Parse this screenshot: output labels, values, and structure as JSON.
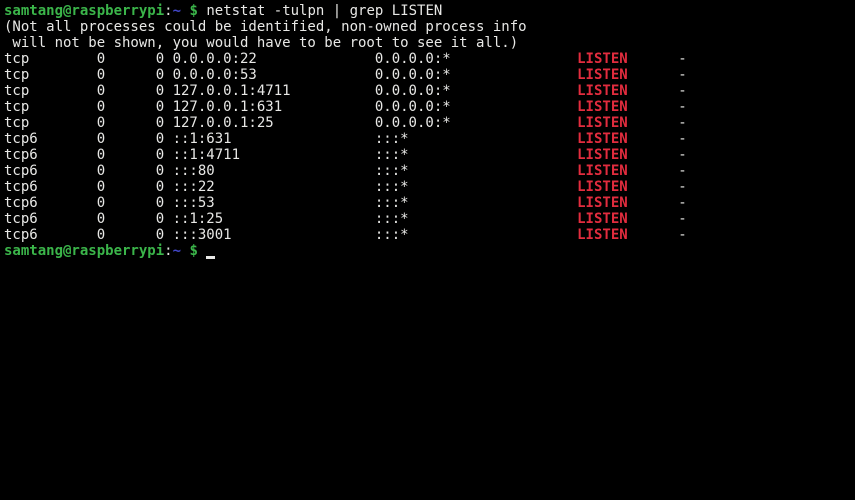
{
  "terminal": {
    "colors": {
      "background": "#000000",
      "foreground": "#e8e8e6",
      "prompt_green": "#3bb54a",
      "path_blue": "#4146c8",
      "match_red": "#e22c3e"
    },
    "prompt_line": {
      "user_host": "samtang@raspberrypi",
      "separator": ":",
      "path": "~",
      "symbol": "$",
      "command": "netstat -tulpn | grep LISTEN"
    },
    "warning_lines": [
      "(Not all processes could be identified, non-owned process info",
      " will not be shown, you would have to be root to see it all.)"
    ],
    "rows": [
      {
        "proto": "tcp",
        "recv_q": "0",
        "send_q": "0",
        "local_address": "0.0.0.0:22",
        "foreign_address": "0.0.0.0:*",
        "state": "LISTEN",
        "pid_program": "-"
      },
      {
        "proto": "tcp",
        "recv_q": "0",
        "send_q": "0",
        "local_address": "0.0.0.0:53",
        "foreign_address": "0.0.0.0:*",
        "state": "LISTEN",
        "pid_program": "-"
      },
      {
        "proto": "tcp",
        "recv_q": "0",
        "send_q": "0",
        "local_address": "127.0.0.1:4711",
        "foreign_address": "0.0.0.0:*",
        "state": "LISTEN",
        "pid_program": "-"
      },
      {
        "proto": "tcp",
        "recv_q": "0",
        "send_q": "0",
        "local_address": "127.0.0.1:631",
        "foreign_address": "0.0.0.0:*",
        "state": "LISTEN",
        "pid_program": "-"
      },
      {
        "proto": "tcp",
        "recv_q": "0",
        "send_q": "0",
        "local_address": "127.0.0.1:25",
        "foreign_address": "0.0.0.0:*",
        "state": "LISTEN",
        "pid_program": "-"
      },
      {
        "proto": "tcp6",
        "recv_q": "0",
        "send_q": "0",
        "local_address": "::1:631",
        "foreign_address": ":::*",
        "state": "LISTEN",
        "pid_program": "-"
      },
      {
        "proto": "tcp6",
        "recv_q": "0",
        "send_q": "0",
        "local_address": "::1:4711",
        "foreign_address": ":::*",
        "state": "LISTEN",
        "pid_program": "-"
      },
      {
        "proto": "tcp6",
        "recv_q": "0",
        "send_q": "0",
        "local_address": ":::80",
        "foreign_address": ":::*",
        "state": "LISTEN",
        "pid_program": "-"
      },
      {
        "proto": "tcp6",
        "recv_q": "0",
        "send_q": "0",
        "local_address": ":::22",
        "foreign_address": ":::*",
        "state": "LISTEN",
        "pid_program": "-"
      },
      {
        "proto": "tcp6",
        "recv_q": "0",
        "send_q": "0",
        "local_address": ":::53",
        "foreign_address": ":::*",
        "state": "LISTEN",
        "pid_program": "-"
      },
      {
        "proto": "tcp6",
        "recv_q": "0",
        "send_q": "0",
        "local_address": "::1:25",
        "foreign_address": ":::*",
        "state": "LISTEN",
        "pid_program": "-"
      },
      {
        "proto": "tcp6",
        "recv_q": "0",
        "send_q": "0",
        "local_address": ":::3001",
        "foreign_address": ":::*",
        "state": "LISTEN",
        "pid_program": "-"
      }
    ],
    "bottom_prompt": {
      "user_host": "samtang@raspberrypi",
      "separator": ":",
      "path": "~",
      "symbol": "$"
    }
  }
}
